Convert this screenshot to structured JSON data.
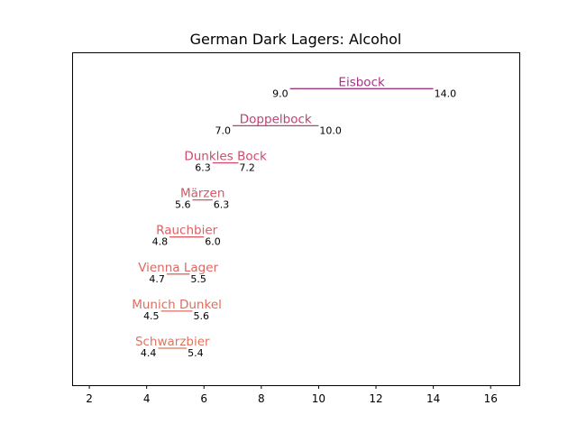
{
  "chart_data": {
    "type": "range-bar",
    "title": "German Dark Lagers: Alcohol",
    "xlabel": "",
    "ylabel": "",
    "xlim": [
      1.4,
      17.0
    ],
    "xticks": [
      2,
      4,
      6,
      8,
      10,
      12,
      14,
      16
    ],
    "grid": false,
    "series": [
      {
        "name": "Schwarzbier",
        "min": 4.4,
        "max": 5.4,
        "color": "#e2735e"
      },
      {
        "name": "Munich Dunkel",
        "min": 4.5,
        "max": 5.6,
        "color": "#e06c60"
      },
      {
        "name": "Vienna Lager",
        "min": 4.7,
        "max": 5.5,
        "color": "#de6762"
      },
      {
        "name": "Rauchbier",
        "min": 4.8,
        "max": 6.0,
        "color": "#dc5f63"
      },
      {
        "name": "Märzen",
        "min": 5.6,
        "max": 6.3,
        "color": "#d85465"
      },
      {
        "name": "Dunkles Bock",
        "min": 6.3,
        "max": 7.2,
        "color": "#cf4a6a"
      },
      {
        "name": "Doppelbock",
        "min": 7.0,
        "max": 10.0,
        "color": "#c03f73"
      },
      {
        "name": "Eisbock",
        "min": 9.0,
        "max": 14.0,
        "color": "#a33580"
      }
    ]
  }
}
